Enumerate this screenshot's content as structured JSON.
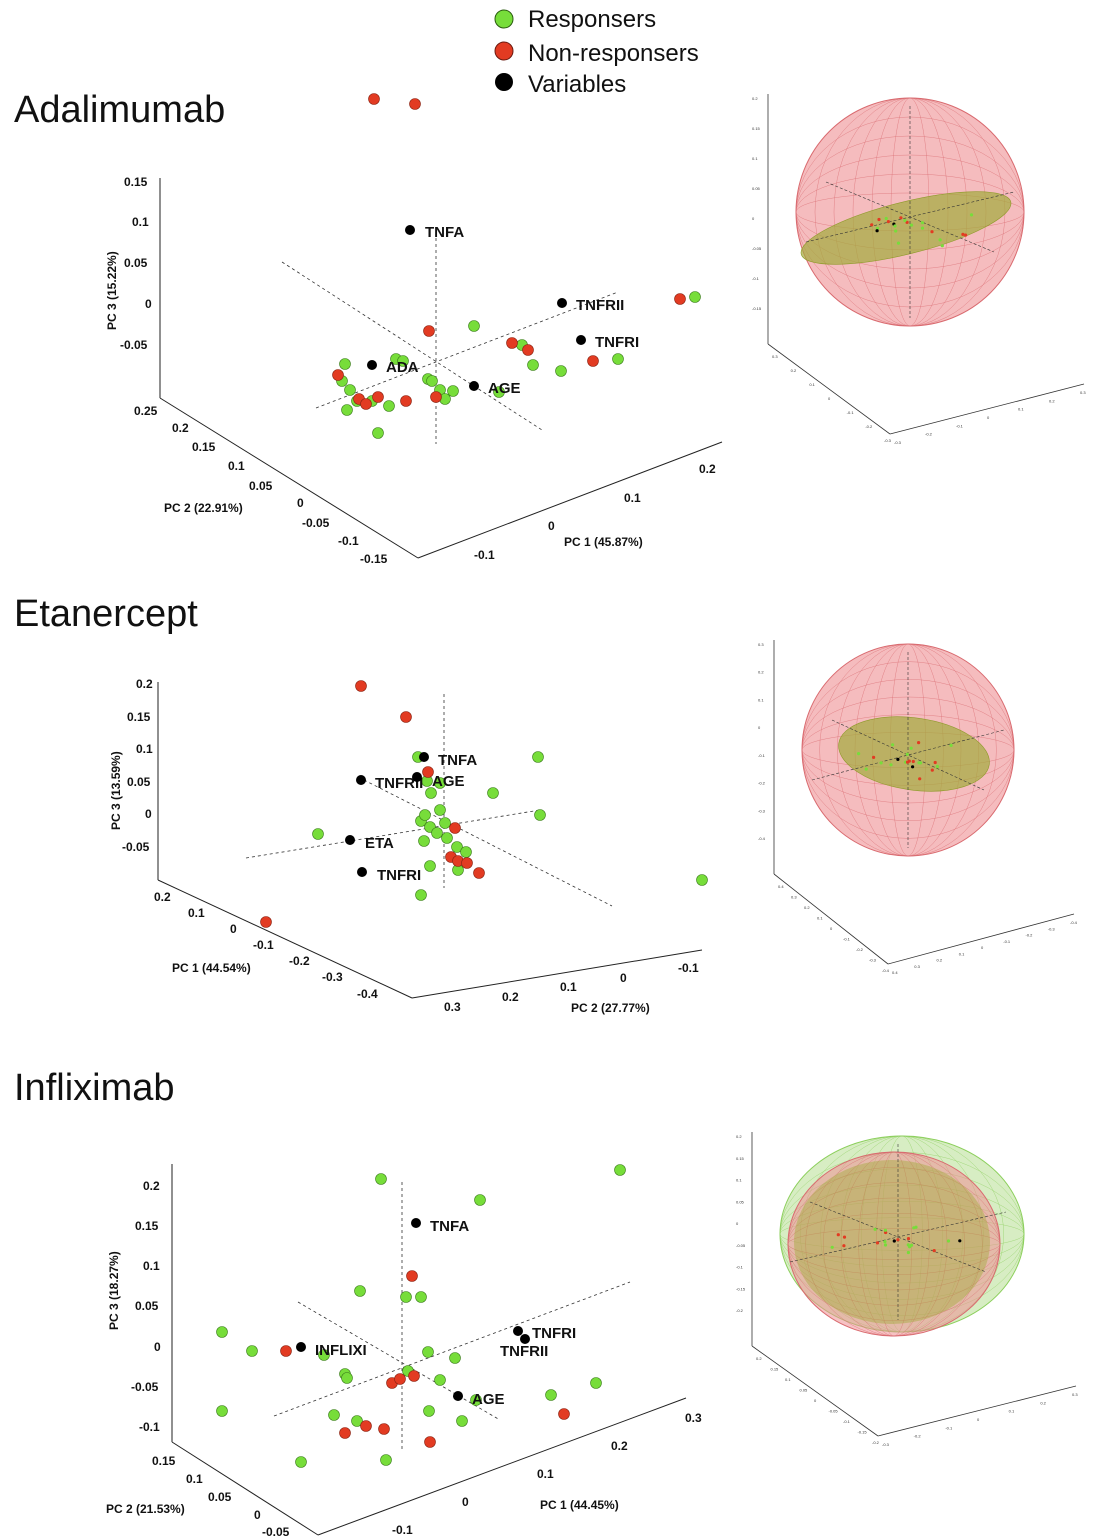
{
  "legend": [
    {
      "label": "Responsers",
      "color": "#77dd3a"
    },
    {
      "label": "Non-responsers",
      "color": "#e23b22"
    },
    {
      "label": "Variables",
      "color": "#000000"
    }
  ],
  "colors": {
    "responder": "#77dd3a",
    "non_responder": "#e23b22",
    "variable": "#000000",
    "sphere_red": "#ee8f93",
    "sphere_green": "#a6d87a",
    "ellipse_olive": "#a3ab3c"
  },
  "chart_data": [
    {
      "type": "scatter",
      "title": "Adalimumab",
      "axis_x_label": "PC 1 (45.87%)",
      "axis_y_label": "PC 2 (22.91%)",
      "axis_z_label": "PC 3 (15.22%)",
      "x_ticks": [
        "-0.1",
        "0",
        "0.1",
        "0.2"
      ],
      "y_ticks": [
        "0.25",
        "0.2",
        "0.15",
        "0.1",
        "0.05",
        "0",
        "-0.05",
        "-0.1",
        "-0.15"
      ],
      "z_ticks": [
        "0.15",
        "0.1",
        "0.05",
        "0",
        "-0.05"
      ],
      "variables": [
        "TNFA",
        "TNFRII",
        "TNFRI",
        "ADA",
        "AGE"
      ],
      "responder_count": 27,
      "non_responder_count": 17
    },
    {
      "type": "scatter",
      "title": "Etanercept",
      "axis_x_label": "PC 1 (44.54%)",
      "axis_y_label": "PC 2 (27.77%)",
      "axis_z_label": "PC 3 (13.59%)",
      "x_ticks": [
        "0.2",
        "0.1",
        "0",
        "-0.1",
        "-0.2",
        "-0.3",
        "-0.4"
      ],
      "y_ticks": [
        "0.3",
        "0.2",
        "0.1",
        "0",
        "-0.1"
      ],
      "z_ticks": [
        "0.2",
        "0.15",
        "0.1",
        "0.05",
        "0",
        "-0.05"
      ],
      "variables": [
        "TNFA",
        "TNFRII",
        "AGE",
        "ETA",
        "TNFRI"
      ],
      "responder_count": 25,
      "non_responder_count": 10
    },
    {
      "type": "scatter",
      "title": "Infliximab",
      "axis_x_label": "PC 1 (44.45%)",
      "axis_y_label": "PC 2 (21.53%)",
      "axis_z_label": "PC 3 (18.27%)",
      "x_ticks": [
        "-0.1",
        "0",
        "0.1",
        "0.2",
        "0.3"
      ],
      "y_ticks": [
        "0.15",
        "0.1",
        "0.05",
        "0",
        "-0.05"
      ],
      "z_ticks": [
        "0.2",
        "0.15",
        "0.1",
        "0.05",
        "0",
        "-0.05",
        "-0.1"
      ],
      "variables": [
        "TNFA",
        "INFLIXI",
        "TNFRI",
        "TNFRII",
        "AGE"
      ],
      "responder_count": 27,
      "non_responder_count": 10
    }
  ],
  "insets": [
    {
      "z_ticks": [
        "0.2",
        "0.15",
        "0.1",
        "0.05",
        "0",
        "-0.05",
        "-0.1",
        "-0.15"
      ],
      "a_ticks": [
        "0.3",
        "0.2",
        "0.1",
        "0",
        "-0.1",
        "-0.2",
        "-0.3"
      ],
      "b_ticks": [
        "-0.3",
        "-0.2",
        "-0.1",
        "0",
        "0.1",
        "0.2",
        "0.3"
      ]
    },
    {
      "z_ticks": [
        "0.3",
        "0.2",
        "0.1",
        "0",
        "-0.1",
        "-0.2",
        "-0.3",
        "-0.4"
      ],
      "a_ticks": [
        "0.4",
        "0.3",
        "0.2",
        "0.1",
        "0",
        "-0.1",
        "-0.2",
        "-0.3",
        "-0.4"
      ],
      "b_ticks": [
        "0.4",
        "0.3",
        "0.2",
        "0.1",
        "0",
        "-0.1",
        "-0.2",
        "-0.3",
        "-0.4"
      ]
    },
    {
      "z_ticks": [
        "0.2",
        "0.15",
        "0.1",
        "0.05",
        "0",
        "-0.05",
        "-0.1",
        "-0.15",
        "-0.2"
      ],
      "a_ticks": [
        "0.2",
        "0.15",
        "0.1",
        "0.05",
        "0",
        "-0.05",
        "-0.1",
        "-0.15",
        "-0.2"
      ],
      "b_ticks": [
        "-0.3",
        "-0.2",
        "-0.1",
        "0",
        "0.1",
        "0.2",
        "0.3"
      ]
    }
  ]
}
